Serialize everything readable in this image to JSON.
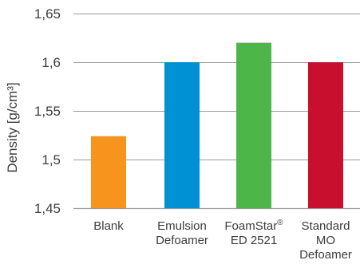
{
  "chart_data": {
    "type": "bar",
    "title": "",
    "ylabel": "Density [g/cm³]",
    "xlabel": "",
    "ylim": [
      1.45,
      1.65
    ],
    "yticks": [
      1.45,
      1.5,
      1.55,
      1.6,
      1.65
    ],
    "ytick_labels": [
      "1,45",
      "1,5",
      "1,55",
      "1,6",
      "1,65"
    ],
    "grid": true,
    "categories": [
      {
        "lines": [
          "Blank"
        ]
      },
      {
        "lines": [
          "Emulsion",
          "Defoamer"
        ]
      },
      {
        "lines": [
          "FoamStar",
          "ED 2521"
        ],
        "superscript": "®"
      },
      {
        "lines": [
          "Standard",
          "MO",
          "Defoamer"
        ]
      }
    ],
    "values": [
      1.524,
      1.6,
      1.62,
      1.6
    ],
    "colors": [
      "#f7941d",
      "#0091d5",
      "#4cb748",
      "#c8102e"
    ],
    "gridline_color": "#9a9a9a",
    "text_color": "#3d3d3d"
  }
}
